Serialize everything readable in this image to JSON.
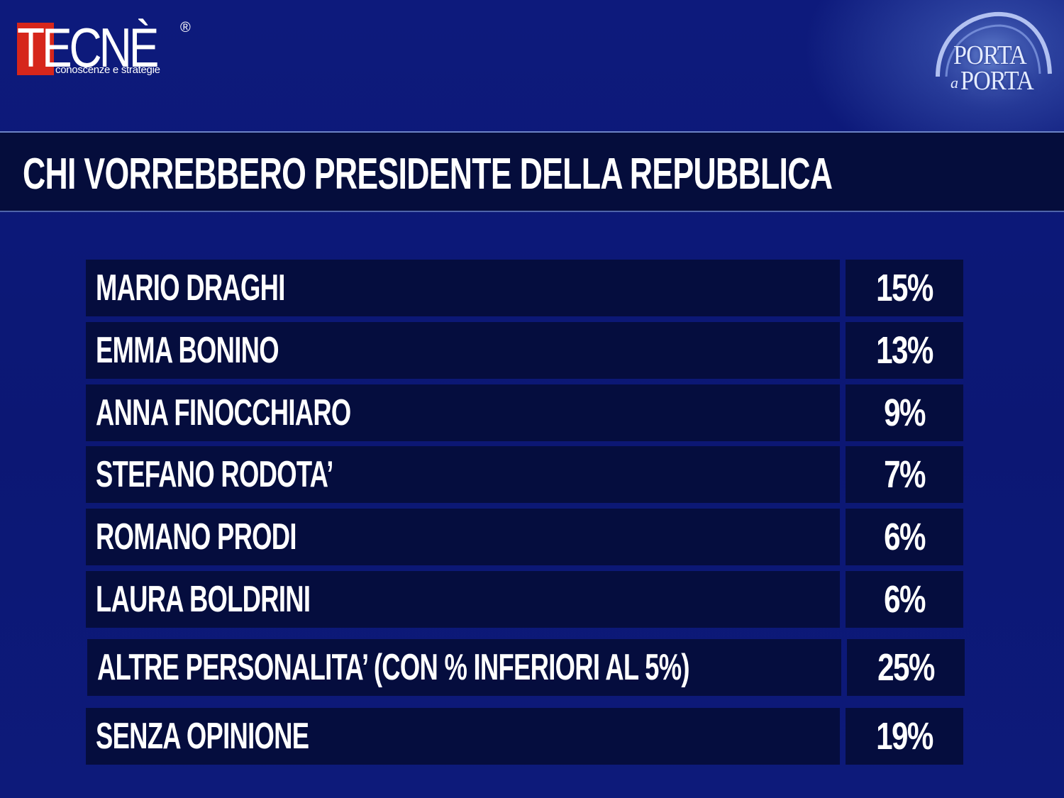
{
  "header": {
    "logo_tecne": {
      "word": "TECNÈ",
      "registered": "®",
      "tagline": "conoscenze e strategie",
      "accent_color": "#d6261b"
    },
    "logo_porta_a_porta": {
      "top": "PORTA",
      "a": "a",
      "bottom": "PORTA"
    }
  },
  "colors": {
    "background": "#0d1a78",
    "band": "#050d3c",
    "cell": "#050d3e",
    "text": "#ffffff"
  },
  "chart_data": {
    "type": "table",
    "title": "CHI VORREBBERO PRESIDENTE DELLA REPUBBLICA",
    "rows": [
      {
        "label": "MARIO DRAGHI",
        "value": "15%"
      },
      {
        "label": "EMMA BONINO",
        "value": "13%"
      },
      {
        "label": "ANNA FINOCCHIARO",
        "value": "9%"
      },
      {
        "label": "STEFANO RODOTA’",
        "value": "7%"
      },
      {
        "label": "ROMANO PRODI",
        "value": "6%"
      },
      {
        "label": "LAURA BOLDRINI",
        "value": "6%"
      },
      {
        "label": "ALTRE PERSONALITA’ (CON % INFERIORI AL 5%)",
        "value": "25%"
      },
      {
        "label": "SENZA OPINIONE",
        "value": "19%"
      }
    ]
  }
}
